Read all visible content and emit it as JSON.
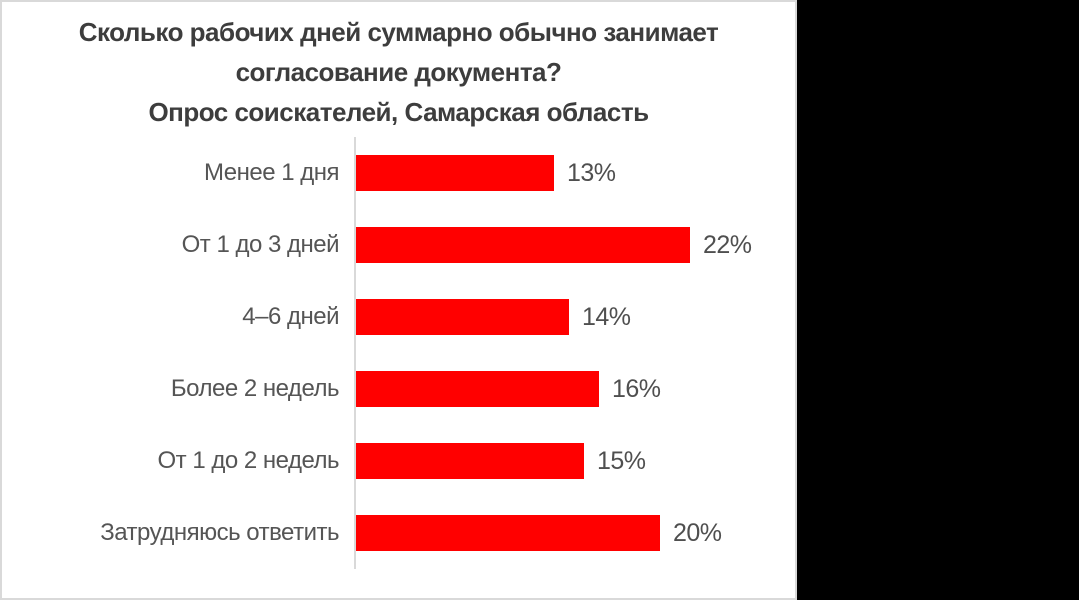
{
  "colors": {
    "bar": "#ff0000",
    "category_label": "#555555",
    "value_label": "#4f4f4f",
    "title": "#3d3d3d",
    "axis_line": "#d9d9d9",
    "card_background": "#ffffff",
    "card_border": "#d9d9d9",
    "side_panel": "#000000"
  },
  "chart": {
    "title_lines": [
      "Сколько рабочих дней суммарно обычно занимает",
      "согласование документа?",
      "Опрос соискателей, Самарская область"
    ]
  },
  "chart_data": {
    "type": "bar",
    "orientation": "horizontal",
    "title": "Сколько рабочих дней суммарно обычно занимает согласование документа? Опрос соискателей, Самарская область",
    "categories": [
      "Менее 1 дня",
      "От 1 до 3 дней",
      "4–6 дней",
      "Более 2 недель",
      "От 1 до 2 недель",
      "Затрудняюсь ответить"
    ],
    "values": [
      13,
      22,
      14,
      16,
      15,
      20
    ],
    "value_labels": [
      "13%",
      "22%",
      "14%",
      "16%",
      "15%",
      "20%"
    ],
    "value_suffix": "%",
    "xlim": [
      0,
      25
    ],
    "grid": false,
    "legend": false,
    "data_labels": true,
    "bar_color": "#ff0000"
  }
}
